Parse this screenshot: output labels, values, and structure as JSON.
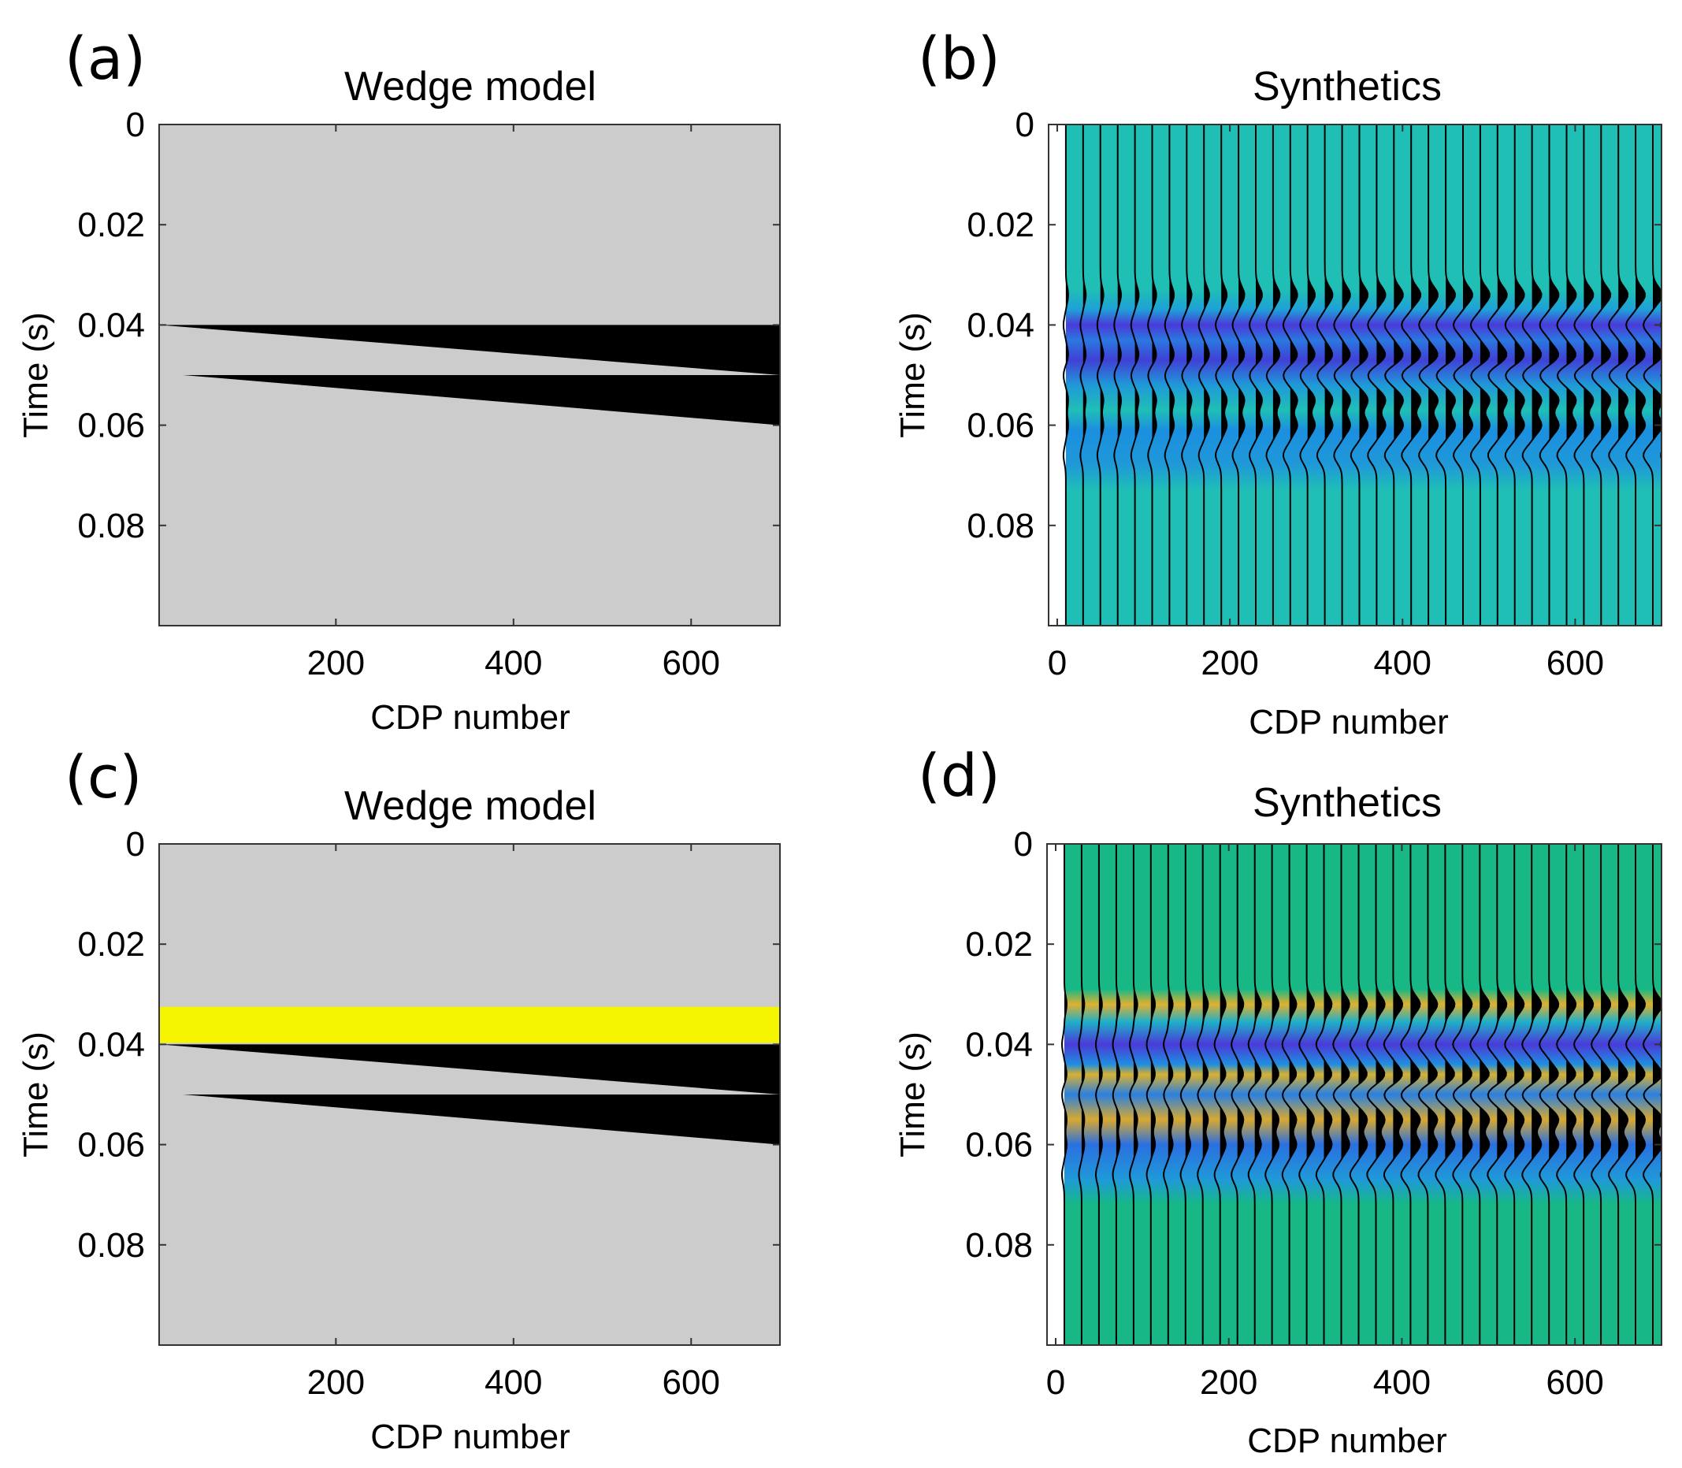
{
  "chart_data": [
    {
      "panel": "(a)",
      "type": "heatmap",
      "title": "Wedge model",
      "xlabel": "CDP number",
      "ylabel": "Time (s)",
      "xlim": [
        1,
        700
      ],
      "ylim": [
        0,
        0.1
      ],
      "xticks": [
        "200",
        "400",
        "600"
      ],
      "yticks": [
        "0",
        "0.02",
        "0.04",
        "0.06",
        "0.08"
      ],
      "background_color": "#cccccc",
      "layers": [
        {
          "name": "upper wedge",
          "color": "#000000",
          "x_start": 1,
          "x_end": 700,
          "top_start": 0.04,
          "top_end": 0.04,
          "base_start": 0.04,
          "base_end": 0.05
        },
        {
          "name": "lower wedge",
          "color": "#000000",
          "x_start": 28,
          "x_end": 700,
          "top_start": 0.05,
          "top_end": 0.05,
          "base_start": 0.05,
          "base_end": 0.06
        }
      ]
    },
    {
      "panel": "(b)",
      "type": "heatmap",
      "title": "Synthetics",
      "xlabel": "CDP number",
      "ylabel": "Time (s)",
      "xlim": [
        -10,
        700
      ],
      "ylim": [
        0,
        0.1
      ],
      "xticks": [
        "0",
        "200",
        "400",
        "600"
      ],
      "yticks": [
        "0",
        "0.02",
        "0.04",
        "0.06",
        "0.08"
      ],
      "trace_count": 36,
      "trace_spacing": 20,
      "base_color": "#1fbfb5",
      "event_times": [
        0.034,
        0.04,
        0.046,
        0.05,
        0.055,
        0.06,
        0.066
      ],
      "event_polarity": [
        1,
        -1,
        1,
        -1,
        1,
        1,
        -1
      ]
    },
    {
      "panel": "(c)",
      "type": "heatmap",
      "title": "Wedge model",
      "xlabel": "CDP number",
      "ylabel": "Time (s)",
      "xlim": [
        1,
        700
      ],
      "ylim": [
        0,
        0.1
      ],
      "xticks": [
        "200",
        "400",
        "600"
      ],
      "yticks": [
        "0",
        "0.02",
        "0.04",
        "0.06",
        "0.08"
      ],
      "background_color": "#cccccc",
      "layers": [
        {
          "name": "yellow layer",
          "color": "#f5f500",
          "x_start": 1,
          "x_end": 700,
          "top_start": 0.0325,
          "top_end": 0.0325,
          "base_start": 0.0397,
          "base_end": 0.0397
        },
        {
          "name": "upper wedge",
          "color": "#000000",
          "x_start": 1,
          "x_end": 700,
          "top_start": 0.04,
          "top_end": 0.04,
          "base_start": 0.04,
          "base_end": 0.05
        },
        {
          "name": "lower wedge",
          "color": "#000000",
          "x_start": 28,
          "x_end": 700,
          "top_start": 0.05,
          "top_end": 0.05,
          "base_start": 0.05,
          "base_end": 0.06
        }
      ]
    },
    {
      "panel": "(d)",
      "type": "heatmap",
      "title": "Synthetics",
      "xlabel": "CDP number",
      "ylabel": "Time (s)",
      "xlim": [
        -10,
        700
      ],
      "ylim": [
        0,
        0.1
      ],
      "xticks": [
        "0",
        "200",
        "400",
        "600"
      ],
      "yticks": [
        "0",
        "0.02",
        "0.04",
        "0.06",
        "0.08"
      ],
      "trace_count": 36,
      "trace_spacing": 20,
      "base_color": "#17b886",
      "event_times": [
        0.032,
        0.04,
        0.046,
        0.05,
        0.055,
        0.06,
        0.066
      ],
      "event_polarity": [
        1,
        -1,
        1,
        -1,
        1,
        1,
        -1
      ]
    }
  ]
}
